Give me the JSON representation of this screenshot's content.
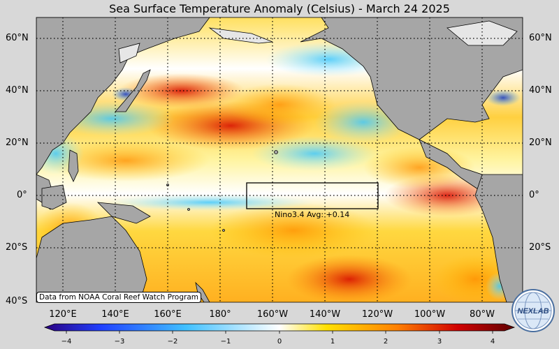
{
  "title": "Sea Surface Temperature Anomaly (Celsius) - March 24 2025",
  "lat_labels": [
    "60°N",
    "40°N",
    "20°N",
    "0°",
    "20°S",
    "40°S"
  ],
  "lon_labels": [
    "120°E",
    "140°E",
    "160°E",
    "180°",
    "160°W",
    "140°W",
    "120°W",
    "100°W",
    "80°W"
  ],
  "nino_label": "Nino3.4 Avg: +0.14",
  "credit": "Data from NOAA Coral Reef Watch Program",
  "colorbar": {
    "ticks": [
      "−4",
      "−3",
      "−2",
      "−1",
      "0",
      "1",
      "2",
      "3",
      "4"
    ],
    "range": [
      -4,
      4
    ],
    "colors": [
      "#2a0080",
      "#2060ff",
      "#40c0ff",
      "#ffffff",
      "#ffe000",
      "#ff8000",
      "#d00000",
      "#600000"
    ]
  },
  "logo": {
    "text": "NEXLAB",
    "icon": "globe-logo-icon"
  },
  "land_color": "#a6a6a6",
  "background_color": "#d8d8d8"
}
